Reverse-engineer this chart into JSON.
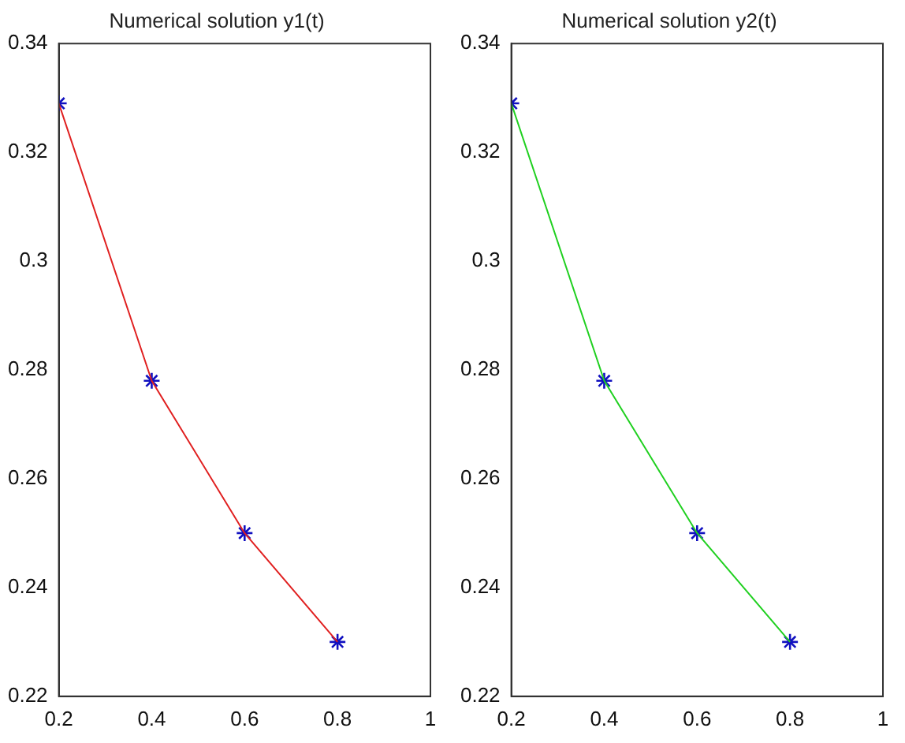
{
  "chart_data": [
    {
      "type": "line",
      "title": "Numerical solution y1(t)",
      "x": [
        0.2,
        0.4,
        0.6,
        0.8
      ],
      "series": [
        {
          "type": "line",
          "color": "#e02020",
          "values": [
            0.329,
            0.278,
            0.25,
            0.23
          ],
          "marker": "none"
        },
        {
          "type": "scatter",
          "color": "#1010c0",
          "values": [
            0.329,
            0.278,
            0.25,
            0.23
          ],
          "marker": "cross"
        }
      ],
      "xlim": [
        0.2,
        1
      ],
      "xticks": [
        0.2,
        0.4,
        0.6,
        0.8,
        1
      ],
      "ylim": [
        0.22,
        0.34
      ],
      "yticks": [
        0.22,
        0.24,
        0.26,
        0.28,
        0.3,
        0.32,
        0.34
      ],
      "grid": false,
      "legend": false
    },
    {
      "type": "line",
      "title": "Numerical solution y2(t)",
      "x": [
        0.2,
        0.4,
        0.6,
        0.8
      ],
      "series": [
        {
          "type": "line",
          "color": "#20d020",
          "values": [
            0.329,
            0.278,
            0.25,
            0.23
          ],
          "marker": "none"
        },
        {
          "type": "scatter",
          "color": "#1010c0",
          "values": [
            0.329,
            0.278,
            0.25,
            0.23
          ],
          "marker": "cross"
        }
      ],
      "xlim": [
        0.2,
        1
      ],
      "xticks": [
        0.2,
        0.4,
        0.6,
        0.8,
        1
      ],
      "ylim": [
        0.22,
        0.34
      ],
      "yticks": [
        0.22,
        0.24,
        0.26,
        0.28,
        0.3,
        0.32,
        0.34
      ],
      "grid": false,
      "legend": false
    }
  ]
}
